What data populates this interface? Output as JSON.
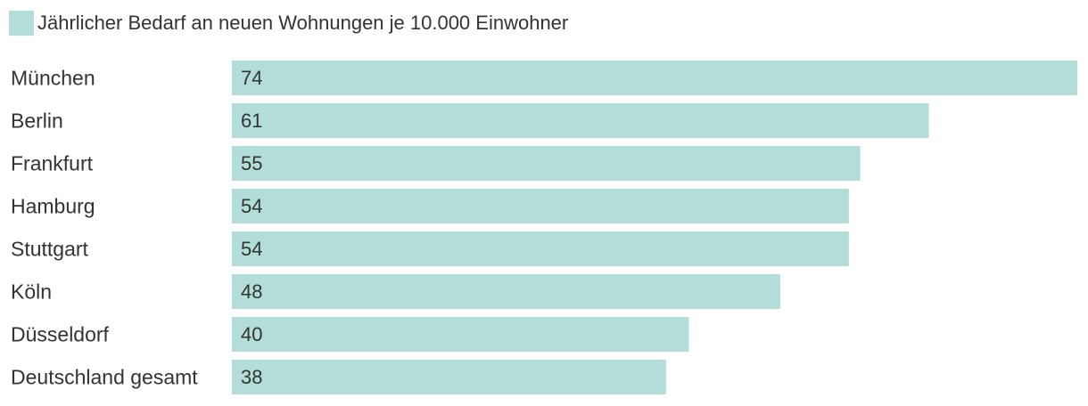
{
  "legend": {
    "label": "Jährlicher Bedarf an neuen Wohnungen je 10.000 Einwohner"
  },
  "colors": {
    "bar": "#b2ddd8",
    "text": "#333333"
  },
  "chart_data": {
    "type": "bar",
    "orientation": "horizontal",
    "categories": [
      "München",
      "Berlin",
      "Frankfurt",
      "Hamburg",
      "Stuttgart",
      "Köln",
      "Düsseldorf",
      "Deutschland gesamt"
    ],
    "series": [
      {
        "name": "Jährlicher Bedarf an neuen Wohnungen je 10.000 Einwohner",
        "values": [
          74,
          61,
          55,
          54,
          54,
          48,
          40,
          38
        ]
      }
    ],
    "xlim": [
      0,
      74
    ],
    "data_labels": true,
    "grid": false,
    "legend_position": "top-left"
  }
}
